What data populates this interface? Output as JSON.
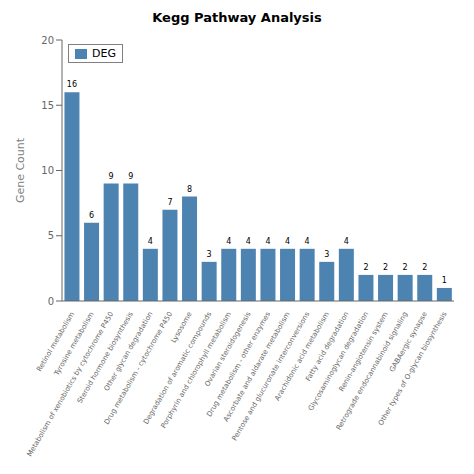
{
  "chart_data": {
    "type": "bar",
    "title": "Kegg Pathway Analysis",
    "y_label": "Gene Count",
    "categories": [
      "Retinol metabolism",
      "Tyrosine metabolism",
      "Metabolism of xenobiotics by cytochrome P450",
      "Steroid hormone biosynthesis",
      "Other glycan degradation",
      "Drug metabolism - cytochrome P450",
      "Lysosome",
      "Degradation of aromatic compounds",
      "Porphyrin and chlorophyll metabolism",
      "Ovarian steroidogenesis",
      "Drug metabolism - other enzymes",
      "Ascorbate and aldarate metabolism",
      "Pentose and glucuronate interconversions",
      "Arachidonic acid metabolism",
      "Fatty acid degradation",
      "Glycosaminoglycan degradation",
      "Renin-angiotensin system",
      "Retrograde endocannabinoid signaling",
      "GABAergic synapse",
      "Other types of O-glycan biosynthesis"
    ],
    "series": [
      {
        "name": "DEG",
        "color": "#4d83b0",
        "values": [
          16,
          6,
          9,
          9,
          4,
          7,
          8,
          3,
          4,
          4,
          4,
          4,
          4,
          3,
          4,
          2,
          2,
          2,
          2,
          1
        ]
      }
    ],
    "ylim": [
      0,
      20
    ],
    "yticks": [
      0,
      5,
      10,
      15,
      20
    ],
    "grid": false,
    "legend": "upper left",
    "data_labels": true
  }
}
